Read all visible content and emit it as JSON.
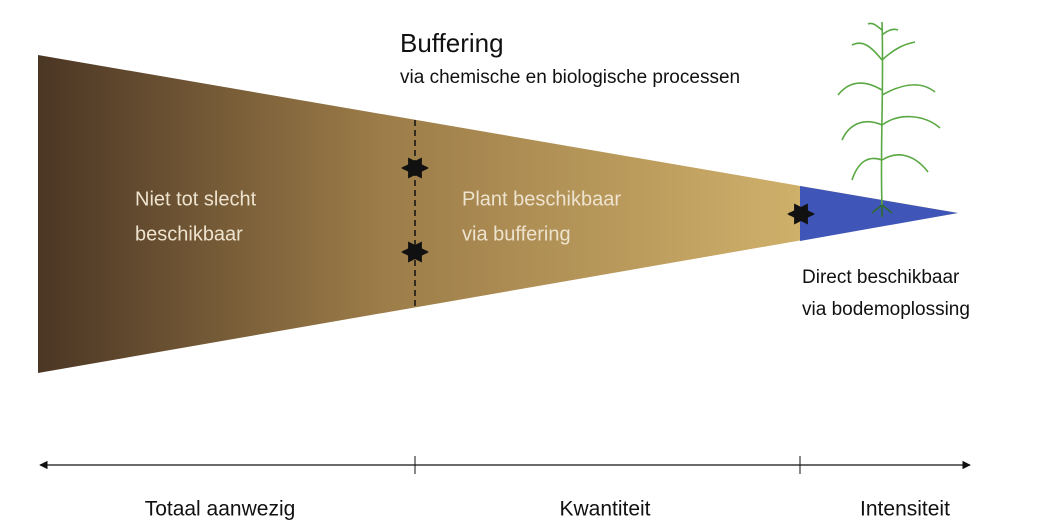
{
  "header": {
    "title": "Buffering",
    "subtitle": "via chemische en biologische processen"
  },
  "regions": [
    {
      "lines": [
        "Niet tot slecht",
        "beschikbaar"
      ]
    },
    {
      "lines": [
        "Plant beschikbaar",
        "via buffering"
      ]
    },
    {
      "lines": [
        "Direct beschikbaar",
        "via bodemoplossing"
      ]
    }
  ],
  "axis_labels": [
    "Totaal aanwezig",
    "Kwantiteit",
    "Intensiteit"
  ]
}
